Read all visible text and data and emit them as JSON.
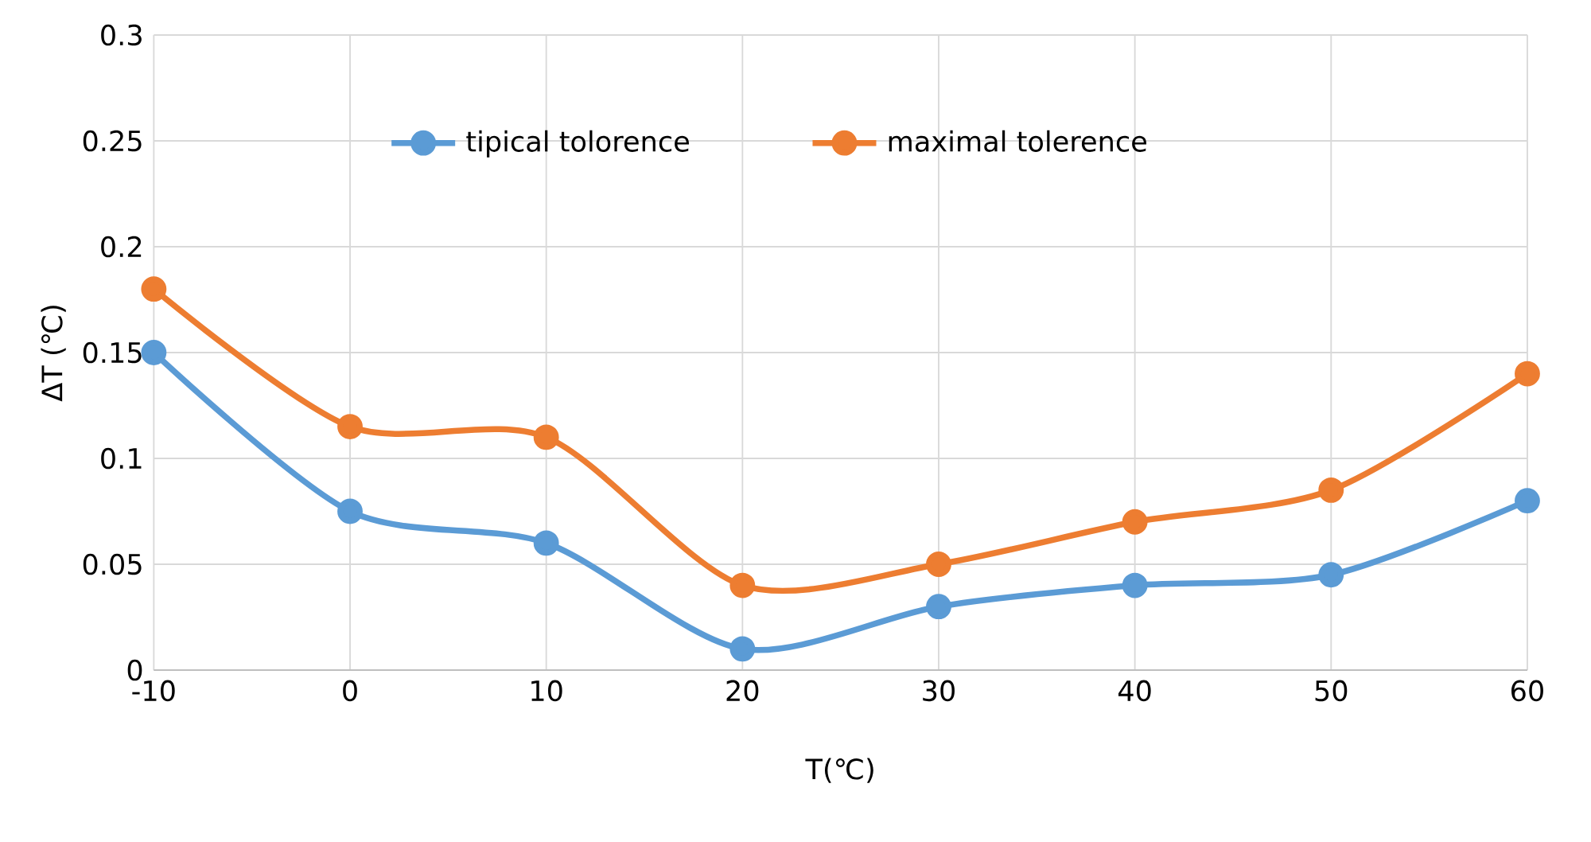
{
  "chart_data": {
    "type": "line",
    "xlabel": "T(℃)",
    "ylabel": "ΔT (℃)",
    "x": [
      -10,
      0,
      10,
      20,
      30,
      40,
      50,
      60
    ],
    "series": [
      {
        "name": "tipical   tolorence",
        "color": "#5b9bd5",
        "values": [
          0.15,
          0.075,
          0.06,
          0.01,
          0.03,
          0.04,
          0.045,
          0.08
        ]
      },
      {
        "name": "maximal   tolerence",
        "color": "#ed7d31",
        "values": [
          0.18,
          0.115,
          0.11,
          0.04,
          0.05,
          0.07,
          0.085,
          0.14
        ]
      }
    ],
    "xlim": [
      -10,
      60
    ],
    "xticks": [
      -10,
      0,
      10,
      20,
      30,
      40,
      50,
      60
    ],
    "ylim": [
      0,
      0.3
    ],
    "yticks": [
      0,
      0.05,
      0.1,
      0.15,
      0.2,
      0.25,
      0.3
    ],
    "grid": true,
    "legend": "top",
    "marker": "circle",
    "line_style": "solid"
  }
}
